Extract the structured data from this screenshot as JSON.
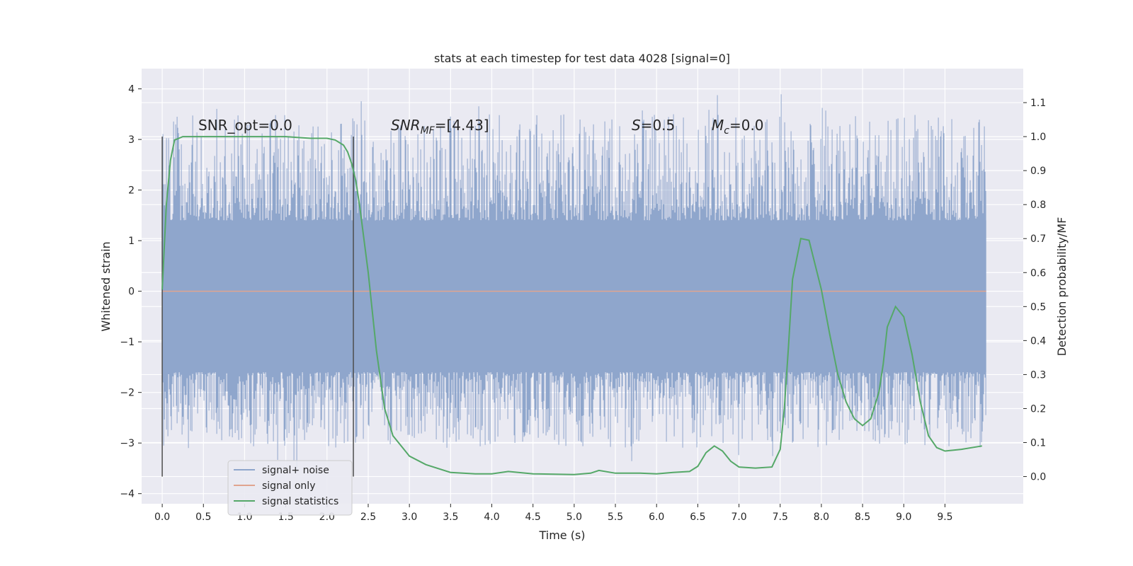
{
  "chart_data": {
    "type": "line",
    "title": "stats at each timestep for test data 4028 [signal=0]",
    "xlabel": "Time (s)",
    "ylabel_left": "Whitened strain",
    "ylabel_right": "Detection probability/MF",
    "xlim": [
      -0.25,
      10.45
    ],
    "ylim_left": [
      -4.2,
      4.4
    ],
    "ylim_right": [
      -0.08,
      1.2
    ],
    "x_ticks": [
      "0.0",
      "0.5",
      "1.0",
      "1.5",
      "2.0",
      "2.5",
      "3.0",
      "3.5",
      "4.0",
      "4.5",
      "5.0",
      "5.5",
      "6.0",
      "6.5",
      "7.0",
      "7.5",
      "8.0",
      "8.5",
      "9.0",
      "9.5"
    ],
    "y_ticks_left": [
      "4",
      "3",
      "2",
      "1",
      "0",
      "−1",
      "−2",
      "−3",
      "−4"
    ],
    "y_ticks_right": [
      "1.1",
      "1.0",
      "0.9",
      "0.8",
      "0.7",
      "0.6",
      "0.5",
      "0.4",
      "0.3",
      "0.2",
      "0.1",
      "0.0"
    ],
    "grid": true,
    "legend_position": "lower-left",
    "series": [
      {
        "name": "signal+ noise",
        "color": "#8fa6cc",
        "axis": "left",
        "kind": "noise",
        "x_range": [
          0.0,
          10.0
        ],
        "envelope": [
          -3.6,
          4.05
        ],
        "core_band": [
          -1.6,
          1.4
        ]
      },
      {
        "name": "signal only",
        "color": "#e0a48f",
        "axis": "left",
        "kind": "line",
        "x": [
          0.0,
          10.0
        ],
        "y": [
          0.0,
          0.0
        ]
      },
      {
        "name": "signal statistics",
        "color": "#55a868",
        "axis": "right",
        "kind": "line",
        "x": [
          0.0,
          0.05,
          0.1,
          0.15,
          0.25,
          0.5,
          1.0,
          1.5,
          1.8,
          2.0,
          2.1,
          2.2,
          2.25,
          2.3,
          2.35,
          2.4,
          2.5,
          2.6,
          2.7,
          2.8,
          3.0,
          3.2,
          3.5,
          3.8,
          4.0,
          4.2,
          4.5,
          5.0,
          5.2,
          5.3,
          5.5,
          5.8,
          6.0,
          6.2,
          6.4,
          6.5,
          6.6,
          6.7,
          6.8,
          6.9,
          7.0,
          7.2,
          7.4,
          7.5,
          7.55,
          7.6,
          7.65,
          7.75,
          7.85,
          8.0,
          8.1,
          8.2,
          8.3,
          8.4,
          8.5,
          8.6,
          8.7,
          8.75,
          8.8,
          8.9,
          9.0,
          9.1,
          9.2,
          9.3,
          9.4,
          9.5,
          9.7,
          9.95
        ],
        "y": [
          0.55,
          0.8,
          0.93,
          0.99,
          1.0,
          1.0,
          1.0,
          1.0,
          0.995,
          0.995,
          0.99,
          0.975,
          0.955,
          0.92,
          0.87,
          0.79,
          0.6,
          0.37,
          0.2,
          0.12,
          0.06,
          0.035,
          0.012,
          0.008,
          0.008,
          0.015,
          0.008,
          0.006,
          0.01,
          0.018,
          0.01,
          0.01,
          0.008,
          0.012,
          0.015,
          0.03,
          0.07,
          0.09,
          0.075,
          0.045,
          0.028,
          0.025,
          0.028,
          0.08,
          0.2,
          0.38,
          0.58,
          0.7,
          0.695,
          0.55,
          0.42,
          0.3,
          0.22,
          0.17,
          0.15,
          0.17,
          0.25,
          0.33,
          0.44,
          0.5,
          0.47,
          0.36,
          0.22,
          0.12,
          0.085,
          0.075,
          0.08,
          0.09
        ]
      }
    ],
    "vlines": [
      0.0,
      2.32
    ],
    "annotations": {
      "snr_opt": "SNR_opt=0.0",
      "snr_mf_sym": "SNR",
      "snr_mf_sub": "MF",
      "snr_mf_val": "=[4.43]",
      "s_sym": "S",
      "s_val": "=0.5",
      "mc_sym": "M",
      "mc_sub": "c",
      "mc_val": "=0.0"
    }
  }
}
